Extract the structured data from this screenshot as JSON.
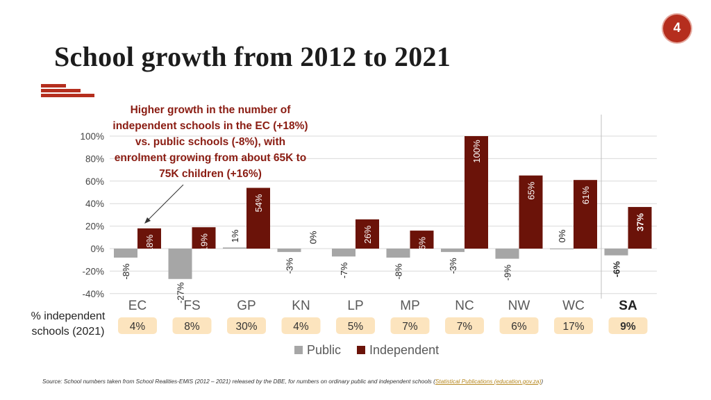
{
  "page_number": "4",
  "title": "School growth from 2012 to 2021",
  "callout": "Higher growth in the number of independent schools in the EC (+18%) vs. public schools (-8%), with enrolment growing from about 65K to 75K children (+16%)",
  "independent_share_label": "% independent schools (2021)",
  "colors": {
    "accent": "#b52e1e",
    "independent": "#6b1309",
    "public": "#a6a6a6",
    "share_box": "#fce4be",
    "callout_text": "#8a1c12"
  },
  "chart_data": {
    "type": "bar",
    "categories": [
      "EC",
      "FS",
      "GP",
      "KN",
      "LP",
      "MP",
      "NC",
      "NW",
      "WC",
      "SA"
    ],
    "series": [
      {
        "name": "Public",
        "values": [
          -8,
          -27,
          1,
          -3,
          -7,
          -8,
          -3,
          -9,
          0,
          -6
        ],
        "labels": [
          "-8%",
          "-27%",
          "1%",
          "-3%",
          "-7%",
          "-8%",
          "-3%",
          "-9%",
          "0%",
          "-6%"
        ]
      },
      {
        "name": "Independent",
        "values": [
          18,
          19,
          54,
          0,
          26,
          16,
          100,
          65,
          61,
          37
        ],
        "labels": [
          "18%",
          "19%",
          "54%",
          "0%",
          "26%",
          "16%",
          "100%",
          "65%",
          "61%",
          "37%"
        ]
      }
    ],
    "independent_share_2021": [
      "4%",
      "8%",
      "30%",
      "4%",
      "5%",
      "7%",
      "7%",
      "6%",
      "17%",
      "9%"
    ],
    "ylim": [
      -40,
      100
    ],
    "yticks": [
      -40,
      -20,
      0,
      20,
      40,
      60,
      80,
      100
    ],
    "ytick_labels": [
      "-40%",
      "-20%",
      "0%",
      "20%",
      "40%",
      "60%",
      "80%",
      "100%"
    ],
    "grid": true,
    "legend": "bottom-center",
    "highlight_category": "SA"
  },
  "source": {
    "text": "Source: School numbers taken from School Realities-EMIS (2012 – 2021) released by the DBE, for numbers on ordinary public and independent schools (",
    "link_text": "Statistical Publications (education.gov.za)",
    "suffix": ")"
  }
}
